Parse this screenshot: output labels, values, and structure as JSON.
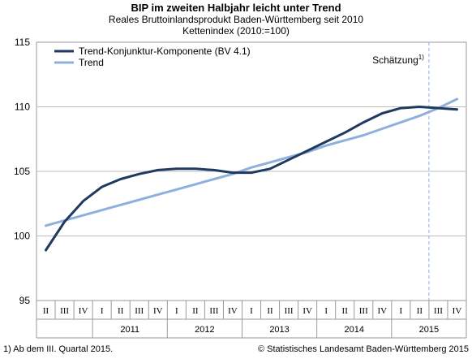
{
  "chart_data": {
    "type": "line",
    "title": "BIP im zweiten Halbjahr leicht unter Trend",
    "subtitle": "Reales Bruttoinlandsprodukt Baden-Württemberg seit 2010",
    "ylabel": "Kettenindex (2010:=100)",
    "ylim": [
      95,
      115
    ],
    "yticks": [
      95,
      100,
      105,
      110,
      115
    ],
    "grid": "horizontal",
    "legend_position": "top-left",
    "quarters": [
      "II",
      "III",
      "IV",
      "I",
      "II",
      "III",
      "IV",
      "I",
      "II",
      "III",
      "IV",
      "I",
      "II",
      "III",
      "IV",
      "I",
      "II",
      "III",
      "IV",
      "I",
      "II",
      "III",
      "IV"
    ],
    "years": [
      {
        "label": "2011",
        "start": 3,
        "end": 6
      },
      {
        "label": "2012",
        "start": 7,
        "end": 10
      },
      {
        "label": "2013",
        "start": 11,
        "end": 14
      },
      {
        "label": "2014",
        "start": 15,
        "end": 18
      },
      {
        "label": "2015",
        "start": 19,
        "end": 22
      }
    ],
    "series": [
      {
        "name": "Trend-Konjunktur-Komponente (BV 4.1)",
        "color": "#1f3a60",
        "values": [
          98.9,
          101.1,
          102.7,
          103.8,
          104.4,
          104.8,
          105.1,
          105.2,
          105.2,
          105.1,
          104.9,
          104.9,
          105.2,
          105.9,
          106.6,
          107.3,
          108.0,
          108.8,
          109.5,
          109.9,
          110.0,
          109.9,
          109.8
        ]
      },
      {
        "name": "Trend",
        "color": "#8fb0dc",
        "values": [
          100.8,
          101.2,
          101.6,
          102.0,
          102.4,
          102.8,
          103.2,
          103.6,
          104.0,
          104.4,
          104.8,
          105.3,
          105.7,
          106.1,
          106.5,
          107.0,
          107.4,
          107.8,
          108.3,
          108.8,
          109.3,
          109.9,
          110.6
        ]
      }
    ],
    "forecast_marker": {
      "after_index": 20,
      "label": "Schätzung",
      "footnote_ref": "1)"
    }
  },
  "footnote": "1) Ab dem III. Quartal 2015.",
  "credit": "© Statistisches Landesamt Baden-Württemberg 2015"
}
